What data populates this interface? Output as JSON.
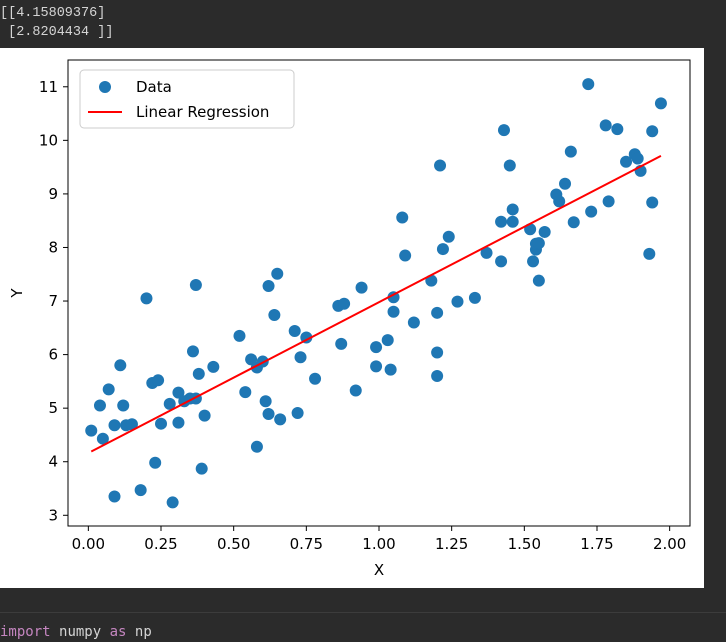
{
  "output": {
    "lines": [
      "[[4.15809376]",
      " [2.8204434 ]]"
    ]
  },
  "code": {
    "kw_import": "import",
    "module": "numpy",
    "kw_as": "as",
    "alias": "np"
  },
  "colors": {
    "points": "#1f77b4",
    "line": "#ff0000",
    "frame": "#000000"
  },
  "chart_data": {
    "type": "scatter",
    "title": "",
    "xlabel": "X",
    "ylabel": "Y",
    "xlim": [
      -0.07,
      2.07
    ],
    "ylim": [
      2.8,
      11.5
    ],
    "xticks": [
      0.0,
      0.25,
      0.5,
      0.75,
      1.0,
      1.25,
      1.5,
      1.75,
      2.0
    ],
    "xtick_labels": [
      "0.00",
      "0.25",
      "0.50",
      "0.75",
      "1.00",
      "1.25",
      "1.50",
      "1.75",
      "2.00"
    ],
    "yticks": [
      3,
      4,
      5,
      6,
      7,
      8,
      9,
      10,
      11
    ],
    "ytick_labels": [
      "3",
      "4",
      "5",
      "6",
      "7",
      "8",
      "9",
      "10",
      "11"
    ],
    "grid": false,
    "legend_position": "upper-left",
    "legend": [
      "Data",
      "Linear Regression"
    ],
    "series": [
      {
        "name": "Data",
        "kind": "scatter",
        "x": [
          0.01,
          0.04,
          0.05,
          0.07,
          0.09,
          0.09,
          0.11,
          0.12,
          0.13,
          0.15,
          0.18,
          0.2,
          0.22,
          0.23,
          0.24,
          0.25,
          0.28,
          0.29,
          0.31,
          0.31,
          0.33,
          0.35,
          0.36,
          0.37,
          0.37,
          0.38,
          0.39,
          0.4,
          0.43,
          0.52,
          0.54,
          0.56,
          0.58,
          0.58,
          0.6,
          0.61,
          0.62,
          0.62,
          0.64,
          0.65,
          0.66,
          0.71,
          0.72,
          0.73,
          0.75,
          0.78,
          0.86,
          0.87,
          0.88,
          0.92,
          0.94,
          0.99,
          0.99,
          1.03,
          1.04,
          1.05,
          1.05,
          1.08,
          1.09,
          1.12,
          1.18,
          1.2,
          1.2,
          1.2,
          1.21,
          1.22,
          1.24,
          1.27,
          1.33,
          1.37,
          1.42,
          1.42,
          1.43,
          1.45,
          1.46,
          1.46,
          1.52,
          1.53,
          1.54,
          1.54,
          1.55,
          1.55,
          1.57,
          1.61,
          1.62,
          1.64,
          1.66,
          1.67,
          1.72,
          1.73,
          1.78,
          1.79,
          1.82,
          1.85,
          1.88,
          1.89,
          1.9,
          1.93,
          1.94,
          1.94,
          1.97
        ],
        "y": [
          4.58,
          5.05,
          4.43,
          5.35,
          3.35,
          4.68,
          5.8,
          5.05,
          4.68,
          4.7,
          3.47,
          7.05,
          5.47,
          3.98,
          5.52,
          4.71,
          5.08,
          3.24,
          5.29,
          4.73,
          5.13,
          5.18,
          6.06,
          5.18,
          7.3,
          5.64,
          3.87,
          4.86,
          5.77,
          6.35,
          5.3,
          5.91,
          5.76,
          4.28,
          5.87,
          5.13,
          4.89,
          7.28,
          6.74,
          7.51,
          4.79,
          6.44,
          4.91,
          5.95,
          6.32,
          5.55,
          6.91,
          6.2,
          6.95,
          5.33,
          7.25,
          6.14,
          5.78,
          6.27,
          5.72,
          6.8,
          7.07,
          8.56,
          7.85,
          6.6,
          7.38,
          6.04,
          5.6,
          6.78,
          9.53,
          7.97,
          8.2,
          6.99,
          7.06,
          7.9,
          7.74,
          8.48,
          10.19,
          9.53,
          8.71,
          8.48,
          8.34,
          7.74,
          7.96,
          8.07,
          7.38,
          8.08,
          8.29,
          8.99,
          8.86,
          9.19,
          9.79,
          8.47,
          11.05,
          8.67,
          10.28,
          8.86,
          10.21,
          9.6,
          9.74,
          9.66,
          9.43,
          7.88,
          10.17,
          8.84,
          10.69
        ]
      },
      {
        "name": "Linear Regression",
        "kind": "line",
        "x": [
          0.01,
          1.97
        ],
        "y": [
          4.19,
          9.71
        ]
      }
    ]
  }
}
